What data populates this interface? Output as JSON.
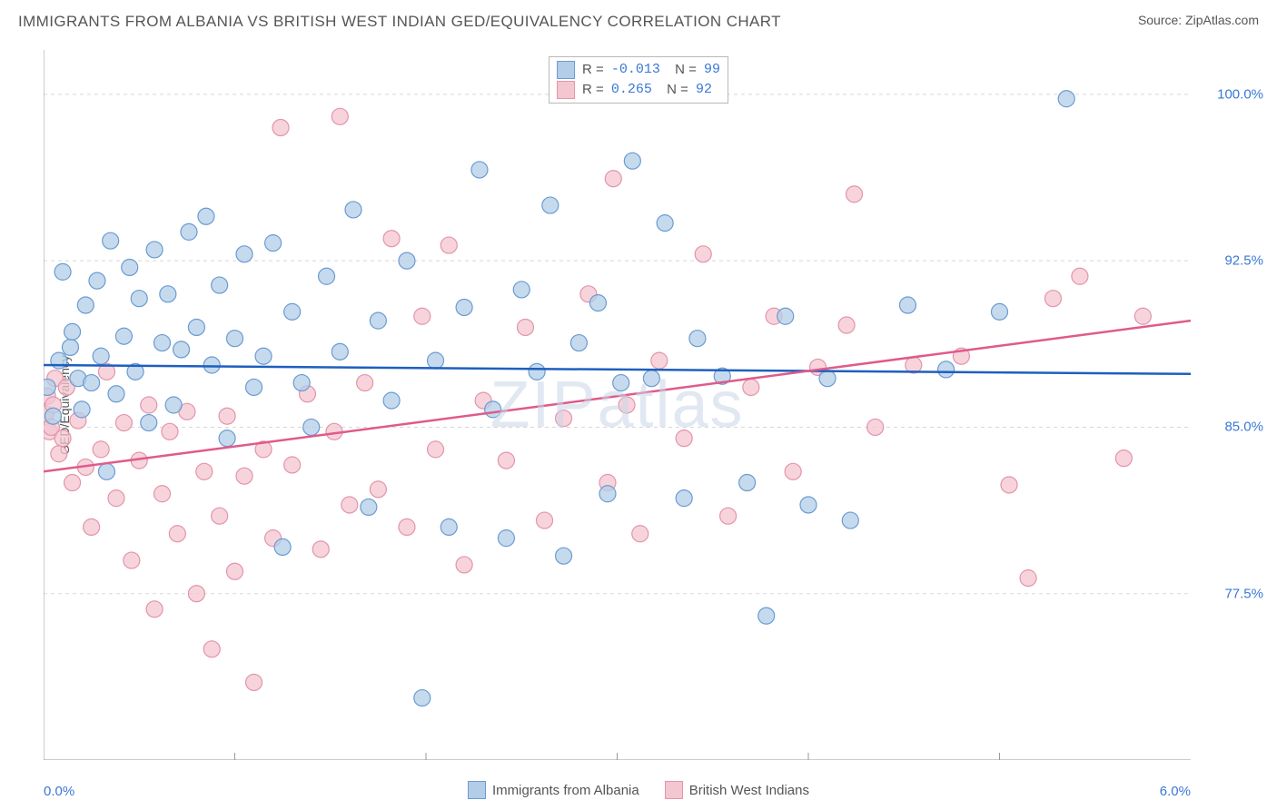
{
  "header": {
    "title": "IMMIGRANTS FROM ALBANIA VS BRITISH WEST INDIAN GED/EQUIVALENCY CORRELATION CHART",
    "source_label": "Source:",
    "source_name": "ZipAtlas.com"
  },
  "watermark": "ZIPatlas",
  "chart": {
    "type": "scatter",
    "ylabel": "GED/Equivalency",
    "xlim": [
      0.0,
      6.0
    ],
    "ylim": [
      70.0,
      102.0
    ],
    "x_tick_label_left": "0.0%",
    "x_tick_label_right": "6.0%",
    "x_minor_ticks": [
      1.0,
      2.0,
      3.0,
      4.0,
      5.0
    ],
    "y_gridlines": [
      77.5,
      85.0,
      92.5,
      100.0
    ],
    "y_tick_labels": [
      "77.5%",
      "85.0%",
      "92.5%",
      "100.0%"
    ],
    "background_color": "#ffffff",
    "grid_color": "#d8d8d8",
    "grid_dash": "4,4",
    "axis_color": "#999999",
    "marker_stroke_width": 1.2,
    "marker_radius": 9,
    "trend_line_width": 2.5,
    "series": [
      {
        "name": "Immigrants from Albania",
        "color_fill": "#b3cde8",
        "color_stroke": "#6a9bd1",
        "trend_color": "#1e5fbf",
        "R": "-0.013",
        "N": "99",
        "trend": {
          "x1": 0.0,
          "y1": 87.8,
          "x2": 6.0,
          "y2": 87.4
        },
        "points": [
          [
            0.02,
            86.8
          ],
          [
            0.05,
            85.5
          ],
          [
            0.08,
            88.0
          ],
          [
            0.1,
            92.0
          ],
          [
            0.14,
            88.6
          ],
          [
            0.15,
            89.3
          ],
          [
            0.18,
            87.2
          ],
          [
            0.2,
            85.8
          ],
          [
            0.22,
            90.5
          ],
          [
            0.25,
            87.0
          ],
          [
            0.28,
            91.6
          ],
          [
            0.3,
            88.2
          ],
          [
            0.33,
            83.0
          ],
          [
            0.35,
            93.4
          ],
          [
            0.38,
            86.5
          ],
          [
            0.42,
            89.1
          ],
          [
            0.45,
            92.2
          ],
          [
            0.48,
            87.5
          ],
          [
            0.5,
            90.8
          ],
          [
            0.55,
            85.2
          ],
          [
            0.58,
            93.0
          ],
          [
            0.62,
            88.8
          ],
          [
            0.65,
            91.0
          ],
          [
            0.68,
            86.0
          ],
          [
            0.72,
            88.5
          ],
          [
            0.76,
            93.8
          ],
          [
            0.8,
            89.5
          ],
          [
            0.85,
            94.5
          ],
          [
            0.88,
            87.8
          ],
          [
            0.92,
            91.4
          ],
          [
            0.96,
            84.5
          ],
          [
            1.0,
            89.0
          ],
          [
            1.05,
            92.8
          ],
          [
            1.1,
            86.8
          ],
          [
            1.15,
            88.2
          ],
          [
            1.2,
            93.3
          ],
          [
            1.25,
            79.6
          ],
          [
            1.3,
            90.2
          ],
          [
            1.35,
            87.0
          ],
          [
            1.4,
            85.0
          ],
          [
            1.48,
            91.8
          ],
          [
            1.55,
            88.4
          ],
          [
            1.62,
            94.8
          ],
          [
            1.7,
            81.4
          ],
          [
            1.75,
            89.8
          ],
          [
            1.82,
            86.2
          ],
          [
            1.9,
            92.5
          ],
          [
            1.98,
            72.8
          ],
          [
            2.05,
            88.0
          ],
          [
            2.12,
            80.5
          ],
          [
            2.2,
            90.4
          ],
          [
            2.28,
            96.6
          ],
          [
            2.35,
            85.8
          ],
          [
            2.42,
            80.0
          ],
          [
            2.5,
            91.2
          ],
          [
            2.58,
            87.5
          ],
          [
            2.65,
            95.0
          ],
          [
            2.72,
            79.2
          ],
          [
            2.8,
            88.8
          ],
          [
            2.9,
            90.6
          ],
          [
            2.95,
            82.0
          ],
          [
            3.02,
            87.0
          ],
          [
            3.08,
            97.0
          ],
          [
            3.18,
            87.2
          ],
          [
            3.25,
            94.2
          ],
          [
            3.35,
            81.8
          ],
          [
            3.42,
            89.0
          ],
          [
            3.55,
            87.3
          ],
          [
            3.68,
            82.5
          ],
          [
            3.78,
            76.5
          ],
          [
            3.88,
            90.0
          ],
          [
            4.0,
            81.5
          ],
          [
            4.1,
            87.2
          ],
          [
            4.22,
            80.8
          ],
          [
            4.52,
            90.5
          ],
          [
            4.72,
            87.6
          ],
          [
            5.0,
            90.2
          ],
          [
            5.35,
            99.8
          ]
        ]
      },
      {
        "name": "British West Indians",
        "color_fill": "#f4c6d0",
        "color_stroke": "#e394ab",
        "trend_color": "#e05a8a",
        "R": "0.265",
        "N": "92",
        "trend": {
          "x1": 0.0,
          "y1": 83.0,
          "x2": 6.0,
          "y2": 89.8
        },
        "points": [
          [
            0.01,
            85.6
          ],
          [
            0.02,
            86.4
          ],
          [
            0.03,
            84.8
          ],
          [
            0.04,
            85.0
          ],
          [
            0.05,
            86.0
          ],
          [
            0.06,
            87.2
          ],
          [
            0.08,
            83.8
          ],
          [
            0.1,
            84.5
          ],
          [
            0.12,
            86.8
          ],
          [
            0.15,
            82.5
          ],
          [
            0.18,
            85.3
          ],
          [
            0.22,
            83.2
          ],
          [
            0.25,
            80.5
          ],
          [
            0.3,
            84.0
          ],
          [
            0.33,
            87.5
          ],
          [
            0.38,
            81.8
          ],
          [
            0.42,
            85.2
          ],
          [
            0.46,
            79.0
          ],
          [
            0.5,
            83.5
          ],
          [
            0.55,
            86.0
          ],
          [
            0.58,
            76.8
          ],
          [
            0.62,
            82.0
          ],
          [
            0.66,
            84.8
          ],
          [
            0.7,
            80.2
          ],
          [
            0.75,
            85.7
          ],
          [
            0.8,
            77.5
          ],
          [
            0.84,
            83.0
          ],
          [
            0.88,
            75.0
          ],
          [
            0.92,
            81.0
          ],
          [
            0.96,
            85.5
          ],
          [
            1.0,
            78.5
          ],
          [
            1.05,
            82.8
          ],
          [
            1.1,
            73.5
          ],
          [
            1.15,
            84.0
          ],
          [
            1.2,
            80.0
          ],
          [
            1.24,
            98.5
          ],
          [
            1.3,
            83.3
          ],
          [
            1.38,
            86.5
          ],
          [
            1.45,
            79.5
          ],
          [
            1.52,
            84.8
          ],
          [
            1.55,
            99.0
          ],
          [
            1.6,
            81.5
          ],
          [
            1.68,
            87.0
          ],
          [
            1.75,
            82.2
          ],
          [
            1.82,
            93.5
          ],
          [
            1.9,
            80.5
          ],
          [
            1.98,
            90.0
          ],
          [
            2.05,
            84.0
          ],
          [
            2.12,
            93.2
          ],
          [
            2.2,
            78.8
          ],
          [
            2.3,
            86.2
          ],
          [
            2.42,
            83.5
          ],
          [
            2.52,
            89.5
          ],
          [
            2.62,
            80.8
          ],
          [
            2.72,
            85.4
          ],
          [
            2.85,
            91.0
          ],
          [
            2.95,
            82.5
          ],
          [
            2.98,
            96.2
          ],
          [
            3.05,
            86.0
          ],
          [
            3.12,
            80.2
          ],
          [
            3.22,
            88.0
          ],
          [
            3.35,
            84.5
          ],
          [
            3.45,
            92.8
          ],
          [
            3.58,
            81.0
          ],
          [
            3.7,
            86.8
          ],
          [
            3.82,
            90.0
          ],
          [
            3.92,
            83.0
          ],
          [
            4.05,
            87.7
          ],
          [
            4.2,
            89.6
          ],
          [
            4.24,
            95.5
          ],
          [
            4.35,
            85.0
          ],
          [
            4.55,
            87.8
          ],
          [
            4.8,
            88.2
          ],
          [
            5.05,
            82.4
          ],
          [
            5.15,
            78.2
          ],
          [
            5.28,
            90.8
          ],
          [
            5.42,
            91.8
          ],
          [
            5.65,
            83.6
          ],
          [
            5.75,
            90.0
          ]
        ]
      }
    ]
  },
  "legend_bottom": {
    "series1_label": "Immigrants from Albania",
    "series2_label": "British West Indians"
  }
}
